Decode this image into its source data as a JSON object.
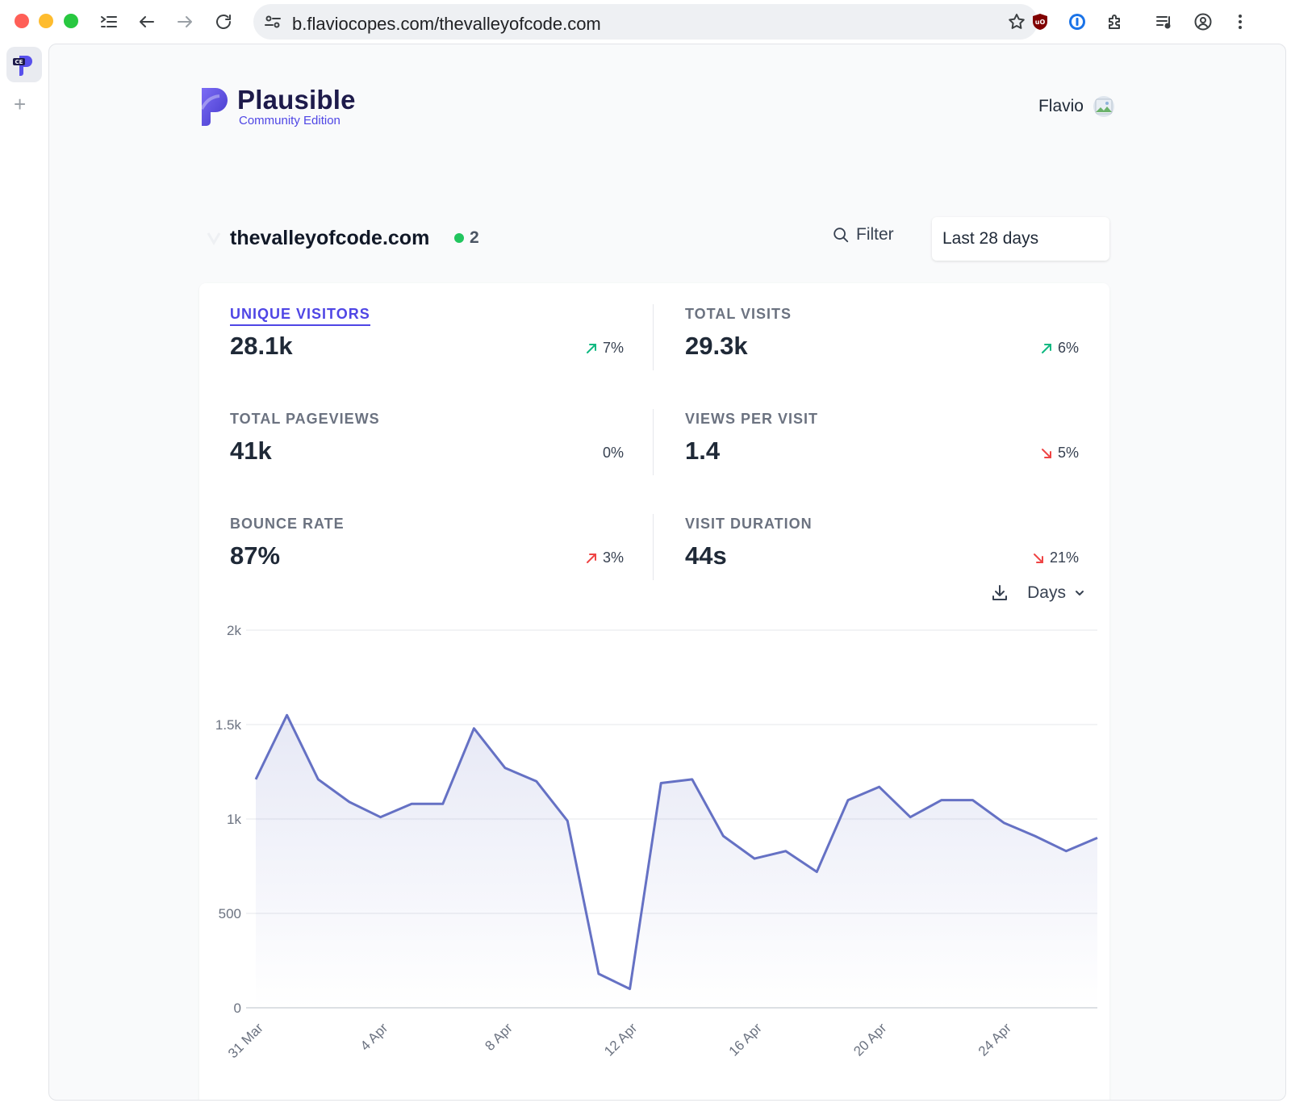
{
  "browser": {
    "url": "b.flaviocopes.com/thevalleyofcode.com",
    "rail_app_badge": "CE",
    "new_tab_symbol": "+"
  },
  "header": {
    "brand": "Plausible",
    "edition": "Community Edition",
    "user_name": "Flavio"
  },
  "site": {
    "domain": "thevalleyofcode.com",
    "live_visitors": "2",
    "filter_label": "Filter",
    "date_range": "Last 28 days"
  },
  "metrics": [
    {
      "label": "UNIQUE VISITORS",
      "value": "28.1k",
      "change": "7%",
      "direction": "up-good",
      "active": true
    },
    {
      "label": "TOTAL VISITS",
      "value": "29.3k",
      "change": "6%",
      "direction": "up-good",
      "active": false
    },
    {
      "label": "TOTAL PAGEVIEWS",
      "value": "41k",
      "change": "0%",
      "direction": "none",
      "active": false
    },
    {
      "label": "VIEWS PER VISIT",
      "value": "1.4",
      "change": "5%",
      "direction": "down-bad",
      "active": false
    },
    {
      "label": "BOUNCE RATE",
      "value": "87%",
      "change": "3%",
      "direction": "up-bad",
      "active": false
    },
    {
      "label": "VISIT DURATION",
      "value": "44s",
      "change": "21%",
      "direction": "down-bad",
      "active": false
    }
  ],
  "chart_tools": {
    "interval_label": "Days",
    "download_icon": "download-icon"
  },
  "colors": {
    "accent": "#4f46e5",
    "line": "#6571c4",
    "good": "#10b981",
    "bad": "#ef4444",
    "live": "#22c55e"
  },
  "chart_data": {
    "type": "area",
    "title": "",
    "xlabel": "",
    "ylabel": "",
    "ylim": [
      0,
      2000
    ],
    "y_ticks": [
      "0",
      "500",
      "1k",
      "1.5k",
      "2k"
    ],
    "y_tick_values": [
      0,
      500,
      1000,
      1500,
      2000
    ],
    "x_tick_labels": [
      "31 Mar",
      "4 Apr",
      "8 Apr",
      "12 Apr",
      "16 Apr",
      "20 Apr",
      "24 Apr"
    ],
    "x_tick_indices": [
      0,
      4,
      8,
      12,
      16,
      20,
      24
    ],
    "grid": true,
    "series": [
      {
        "values": [
          1210,
          1550,
          1210,
          1090,
          1010,
          1080,
          1080,
          1480,
          1270,
          1200,
          990,
          180,
          100,
          1190,
          1210,
          910,
          790,
          830,
          720,
          1100,
          1170,
          1010,
          1100,
          1100,
          980,
          910,
          830,
          900
        ]
      }
    ]
  }
}
